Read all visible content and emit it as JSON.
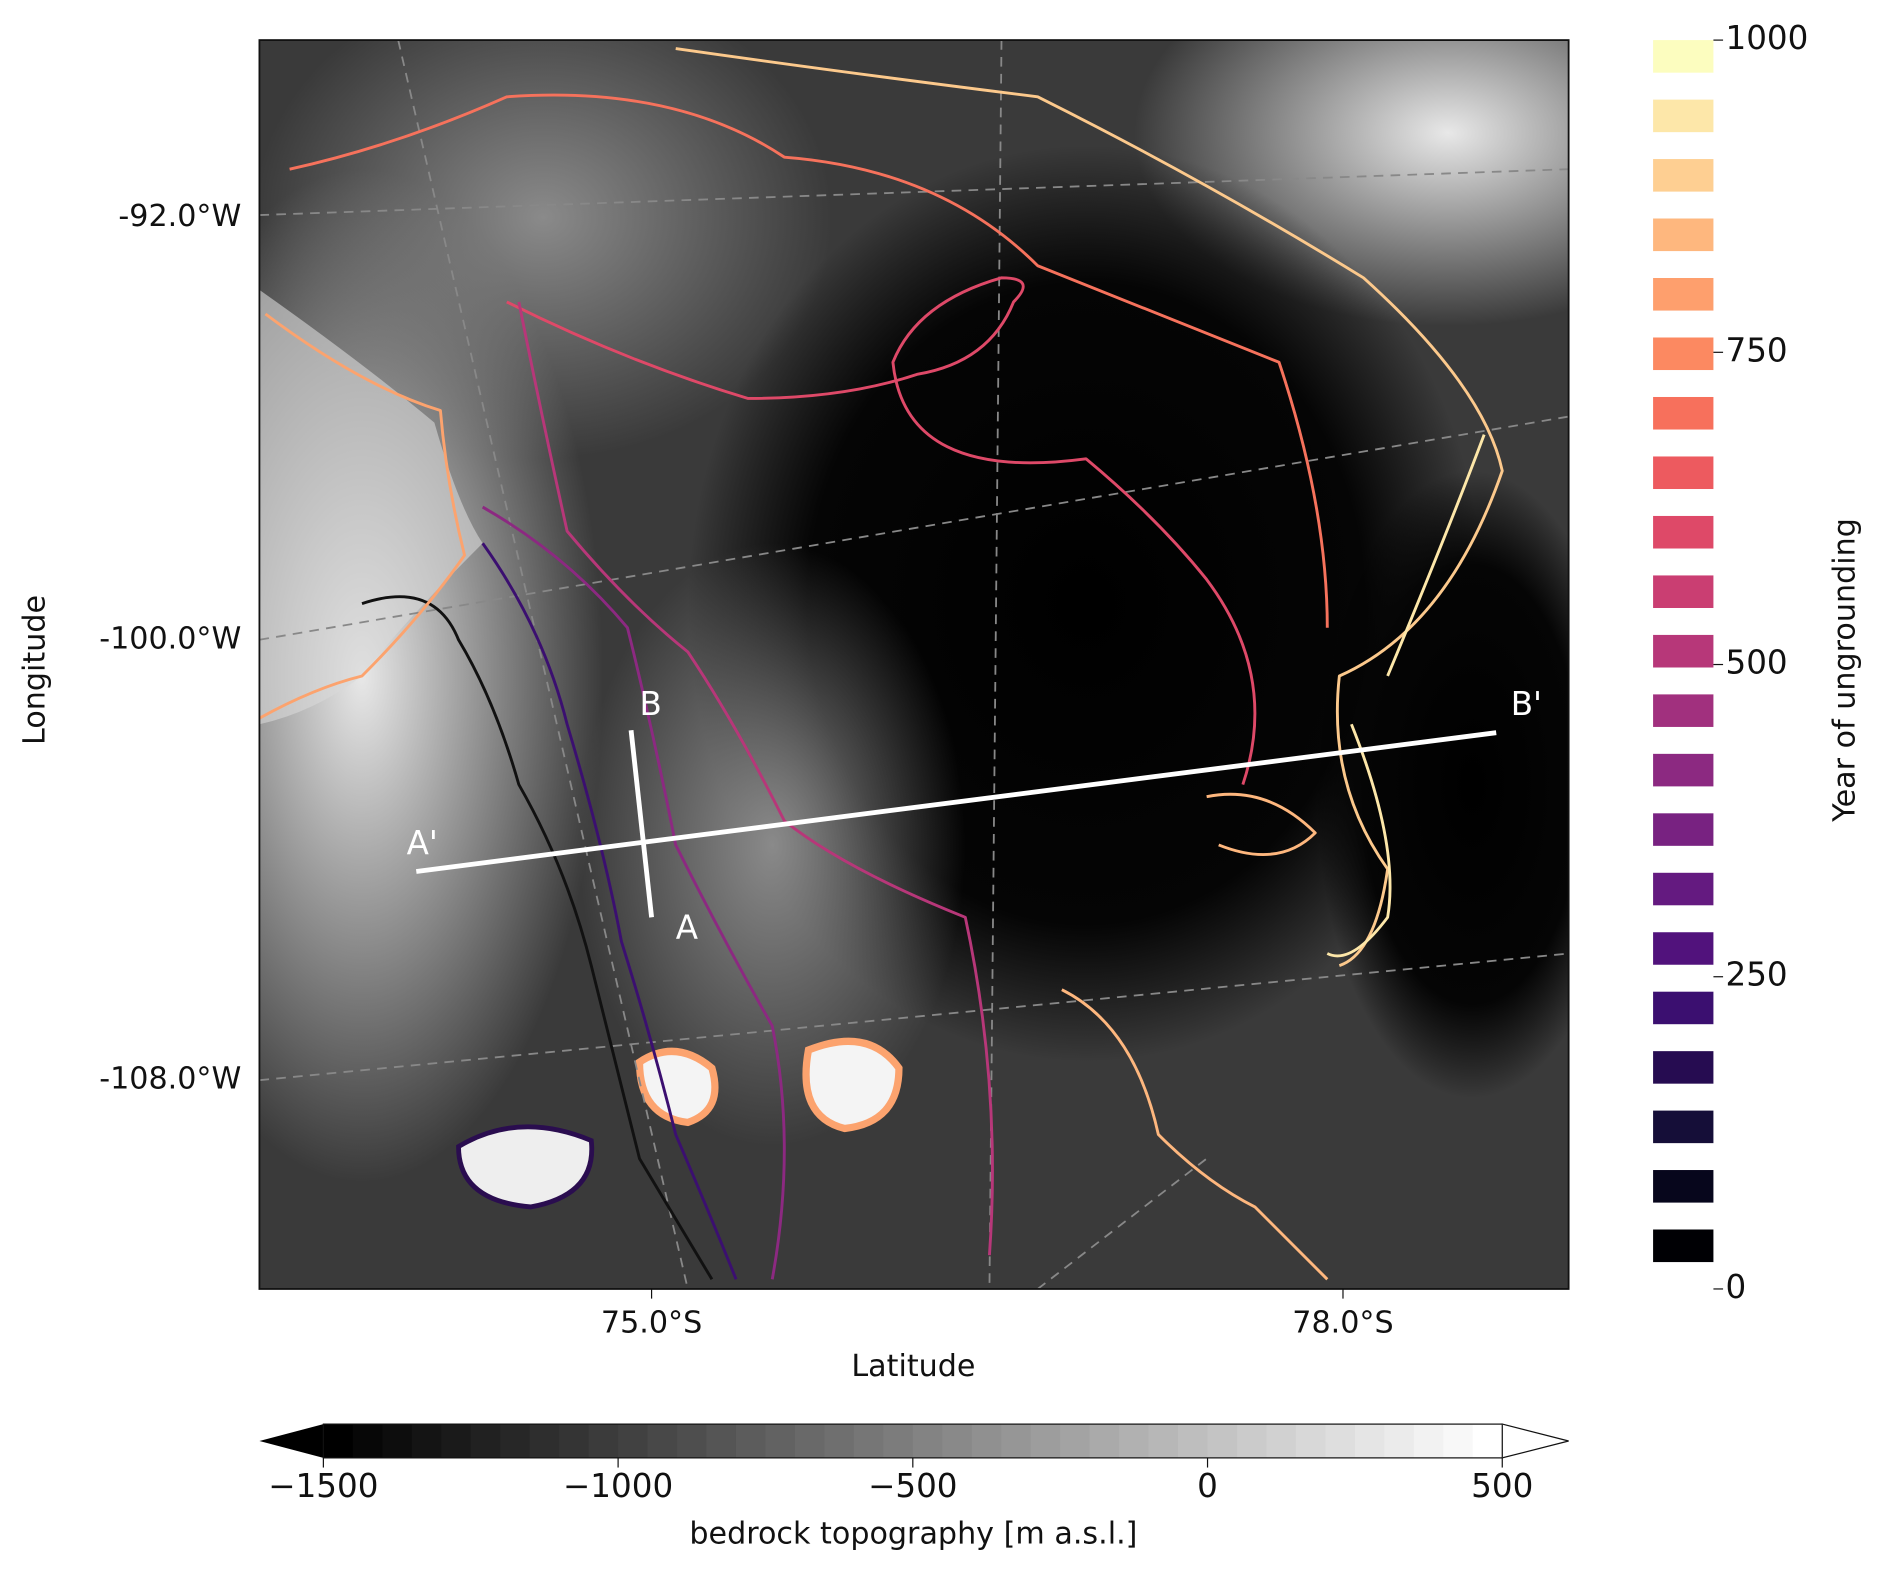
{
  "map": {
    "xlabel": "Latitude",
    "ylabel": "Longitude",
    "xticks": [
      "75.0°S",
      "78.0°S"
    ],
    "yticks": [
      "-92.0°W",
      "-100.0°W",
      "-108.0°W"
    ],
    "profiles": [
      "A",
      "B",
      "A'",
      "B'"
    ]
  },
  "colorbar_years": {
    "label": "Year of ungrounding",
    "lim": [
      0,
      1000
    ],
    "ticks": [
      0,
      250,
      500,
      750,
      1000
    ],
    "colors": [
      "#000004",
      "#07061c",
      "#150e38",
      "#260c51",
      "#3b0f70",
      "#51127c",
      "#641a80",
      "#782281",
      "#8c2981",
      "#a1307e",
      "#b73779",
      "#ca3e72",
      "#de4968",
      "#ed5a5f",
      "#f7705c",
      "#fc8961",
      "#fe9f6d",
      "#feb77e",
      "#fecf92",
      "#fde7a9",
      "#fcfdbf"
    ]
  },
  "colorbar_bedrock": {
    "label": "bedrock topography [m a.s.l.]",
    "lim": [
      -1500,
      500
    ],
    "ticks": [
      {
        "value": -1500,
        "label": "−1500"
      },
      {
        "value": -1000,
        "label": "−1000"
      },
      {
        "value": -500,
        "label": "−500"
      },
      0,
      500
    ],
    "colors": [
      "#000000",
      "#ffffff"
    ]
  }
}
